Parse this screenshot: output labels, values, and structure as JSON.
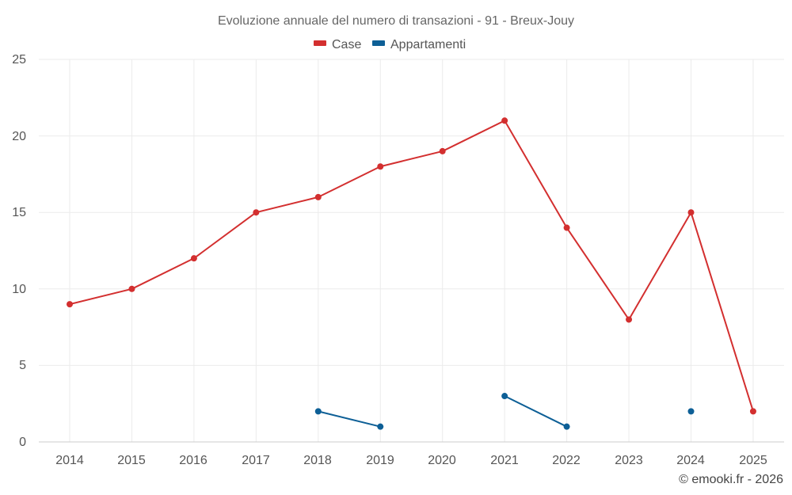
{
  "chart_data": {
    "type": "line",
    "title": "Evoluzione annuale del numero di transazioni - 91 - Breux-Jouy",
    "categories": [
      "2014",
      "2015",
      "2016",
      "2017",
      "2018",
      "2019",
      "2020",
      "2021",
      "2022",
      "2023",
      "2024",
      "2025"
    ],
    "series": [
      {
        "name": "Case",
        "color": "#d32f2f",
        "values": [
          9,
          10,
          12,
          15,
          16,
          18,
          19,
          21,
          14,
          8,
          15,
          2
        ]
      },
      {
        "name": "Appartamenti",
        "color": "#0d5f96",
        "values": [
          null,
          null,
          null,
          null,
          2,
          1,
          null,
          3,
          1,
          null,
          2,
          null
        ]
      }
    ],
    "yticks": [
      "0",
      "5",
      "10",
      "15",
      "20",
      "25"
    ],
    "ylim": [
      0,
      25
    ],
    "xlabel": "",
    "ylabel": "",
    "grid": true,
    "legend": "top-center"
  },
  "credit": "© emooki.fr - 2026"
}
